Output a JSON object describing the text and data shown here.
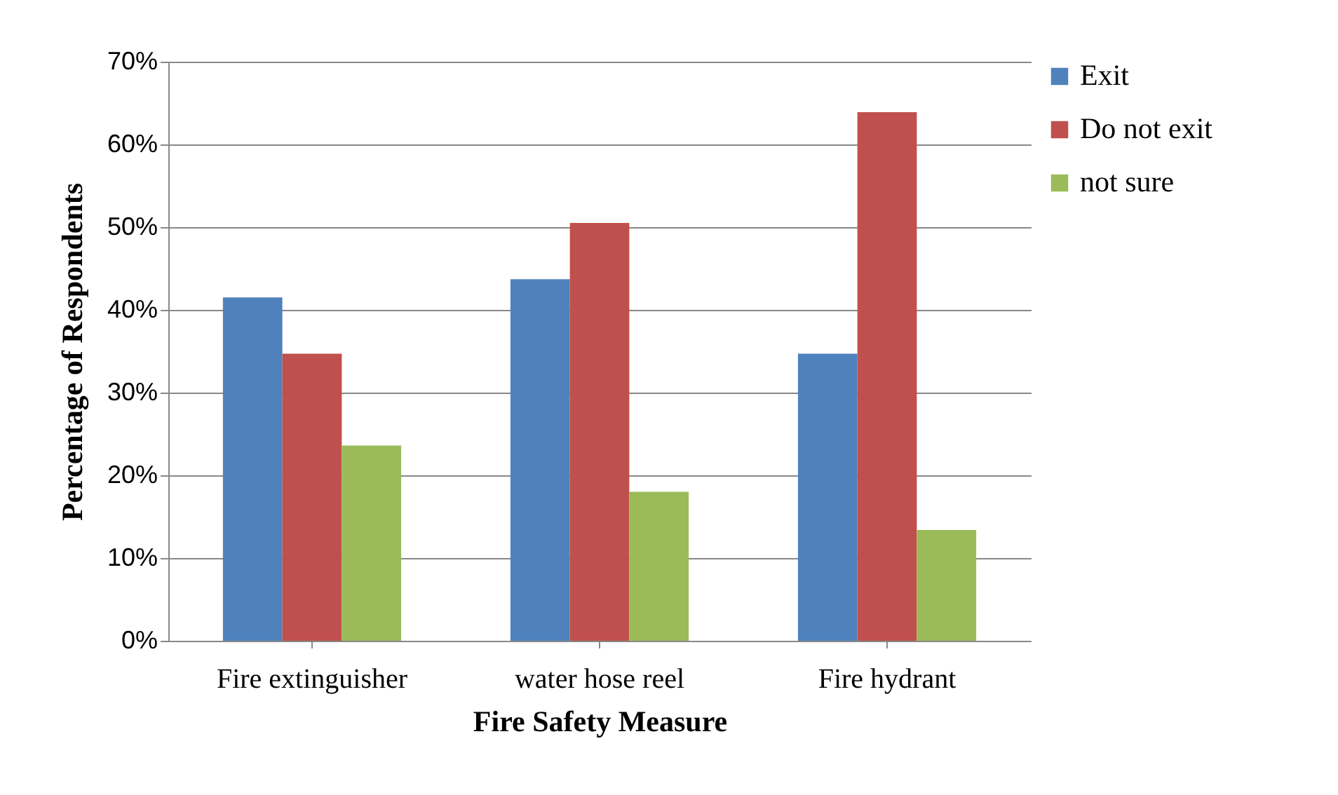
{
  "chart_data": {
    "type": "bar",
    "xlabel": "Fire Safety Measure",
    "ylabel": "Percentage of Respondents",
    "categories": [
      "Fire extinguisher",
      "water hose reel",
      "Fire hydrant"
    ],
    "series": [
      {
        "name": "Exit",
        "color": "#4f81bd",
        "values": [
          41.5,
          43.7,
          34.7
        ]
      },
      {
        "name": "Do not exit",
        "color": "#c0504d",
        "values": [
          34.7,
          50.5,
          63.9
        ]
      },
      {
        "name": "not sure",
        "color": "#9bbb59",
        "values": [
          23.6,
          18,
          13.4
        ]
      }
    ],
    "ylim": [
      0,
      70
    ],
    "yticks": [
      {
        "value": 0,
        "label": "0%"
      },
      {
        "value": 10,
        "label": "10%"
      },
      {
        "value": 20,
        "label": "20%"
      },
      {
        "value": 30,
        "label": "30%"
      },
      {
        "value": 40,
        "label": "40%"
      },
      {
        "value": 50,
        "label": "50%"
      },
      {
        "value": 60,
        "label": "60%"
      },
      {
        "value": 70,
        "label": "70%"
      }
    ],
    "grid": "y",
    "legend": "right"
  }
}
